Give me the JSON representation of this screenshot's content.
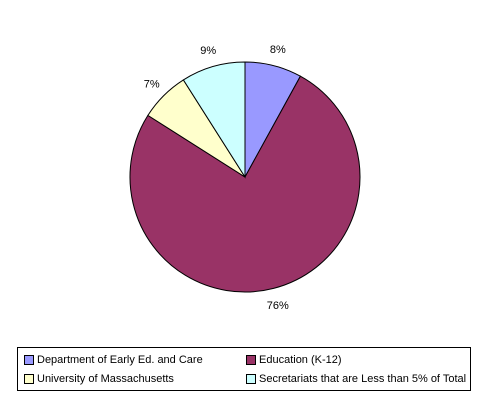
{
  "chart_data": {
    "type": "pie",
    "categories": [
      "Department of Early Ed. and Care",
      "Education (K-12)",
      "University of Massachusetts",
      "Secretariats that are Less than 5% of Total"
    ],
    "values": [
      8,
      76,
      7,
      9
    ],
    "labels": [
      "8%",
      "76%",
      "7%",
      "9%"
    ],
    "colors": [
      "#9999ff",
      "#993366",
      "#ffffcc",
      "#ccffff"
    ],
    "start_angle_deg": 0,
    "direction": "clockwise",
    "legend_position": "bottom"
  }
}
